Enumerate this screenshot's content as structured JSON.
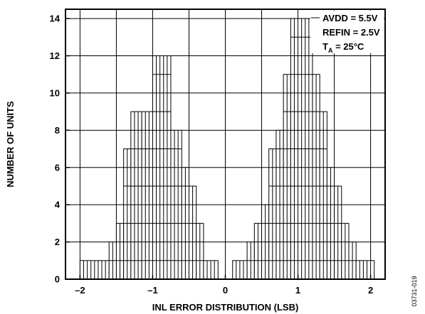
{
  "chart_data": {
    "type": "bar",
    "xlabel": "INL ERROR DISTRIBUTION (LSB)",
    "ylabel": "NUMBER OF UNITS",
    "xlim": [
      -2.2,
      2.2
    ],
    "ylim": [
      0,
      14.5
    ],
    "x_ticks": [
      {
        "value": -2,
        "label": "–2"
      },
      {
        "value": -1,
        "label": "–1"
      },
      {
        "value": 0,
        "label": "0"
      },
      {
        "value": 1,
        "label": "1"
      },
      {
        "value": 2,
        "label": "2"
      }
    ],
    "y_ticks": [
      0,
      2,
      4,
      6,
      8,
      10,
      12,
      14
    ],
    "grid": true,
    "bin_width": 0.05,
    "bars": [
      {
        "x_start": -2.0,
        "x_end": -1.6,
        "count": 1
      },
      {
        "x_start": -1.6,
        "x_end": -1.5,
        "count": 2
      },
      {
        "x_start": -1.5,
        "x_end": -1.4,
        "count": 3
      },
      {
        "x_start": -1.4,
        "x_end": -1.3,
        "count": 7
      },
      {
        "x_start": -1.3,
        "x_end": -1.15,
        "count": 9
      },
      {
        "x_start": -1.15,
        "x_end": -1.0,
        "count": 9
      },
      {
        "x_start": -1.0,
        "x_end": -0.75,
        "count": 12
      },
      {
        "x_start": -0.75,
        "x_end": -0.6,
        "count": 8
      },
      {
        "x_start": -0.6,
        "x_end": -0.5,
        "count": 6
      },
      {
        "x_start": -0.5,
        "x_end": -0.4,
        "count": 5
      },
      {
        "x_start": -0.4,
        "x_end": -0.3,
        "count": 3
      },
      {
        "x_start": -0.3,
        "x_end": -0.1,
        "count": 1
      },
      {
        "x_start": 0.1,
        "x_end": 0.3,
        "count": 1
      },
      {
        "x_start": 0.3,
        "x_end": 0.4,
        "count": 2
      },
      {
        "x_start": 0.4,
        "x_end": 0.5,
        "count": 3
      },
      {
        "x_start": 0.5,
        "x_end": 0.6,
        "count": 4
      },
      {
        "x_start": 0.6,
        "x_end": 0.7,
        "count": 7
      },
      {
        "x_start": 0.7,
        "x_end": 0.8,
        "count": 8
      },
      {
        "x_start": 0.8,
        "x_end": 0.9,
        "count": 11
      },
      {
        "x_start": 0.9,
        "x_end": 1.2,
        "count": 14
      },
      {
        "x_start": 1.2,
        "x_end": 1.3,
        "count": 11
      },
      {
        "x_start": 1.3,
        "x_end": 1.4,
        "count": 9
      },
      {
        "x_start": 1.4,
        "x_end": 1.5,
        "count": 6
      },
      {
        "x_start": 1.5,
        "x_end": 1.6,
        "count": 5
      },
      {
        "x_start": 1.6,
        "x_end": 1.7,
        "count": 3
      },
      {
        "x_start": 1.7,
        "x_end": 1.8,
        "count": 2
      },
      {
        "x_start": 1.8,
        "x_end": 2.05,
        "count": 1
      }
    ],
    "legend": [
      {
        "main": "AVDD = 5.5V"
      },
      {
        "main": "REFIN = 2.5V"
      },
      {
        "main": "T",
        "sub": "A",
        "rest": " = 25°C"
      }
    ],
    "legend_position": "top-right",
    "figure_id": "03731-019"
  }
}
